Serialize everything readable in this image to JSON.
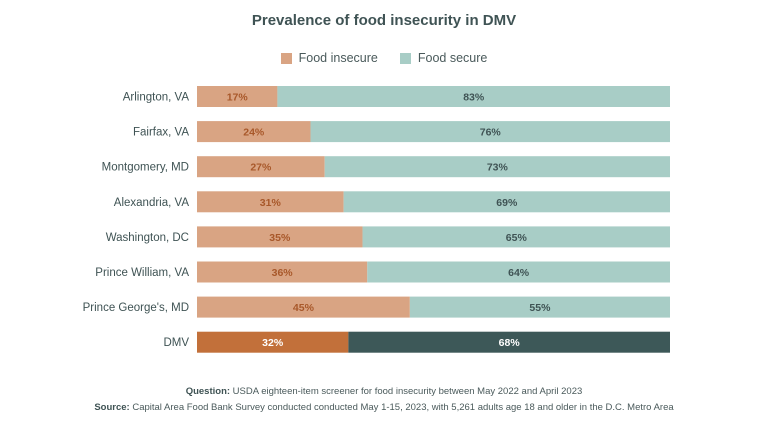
{
  "chart_data": {
    "type": "bar",
    "orientation": "horizontal",
    "stacked": true,
    "title": "Prevalence of food insecurity in DMV",
    "categories": [
      "Arlington, VA",
      "Fairfax, VA",
      "Montgomery, MD",
      "Alexandria, VA",
      "Washington, DC",
      "Prince William, VA",
      "Prince George's, MD",
      "DMV"
    ],
    "series": [
      {
        "name": "Food insecure",
        "values": [
          17,
          24,
          27,
          31,
          35,
          36,
          45,
          32
        ],
        "color": "#d9a483",
        "highlight_color": "#c2703a",
        "label_color": "#a8582a",
        "highlight_label_color": "#ffffff"
      },
      {
        "name": "Food secure",
        "values": [
          83,
          76,
          73,
          69,
          65,
          64,
          55,
          68
        ],
        "color": "#a8cdc6",
        "highlight_color": "#3d5858",
        "label_color": "#3f5354",
        "highlight_label_color": "#ffffff"
      }
    ],
    "value_suffix": "%",
    "highlight_category": "DMV",
    "xlim": [
      0,
      100
    ],
    "legend_position": "top-center",
    "grid": false
  },
  "footer": {
    "question_label": "Question:",
    "question_text": " USDA eighteen-item screener for food insecurity between May 2022 and April 2023",
    "source_label": "Source:",
    "source_text": " Capital Area Food Bank Survey conducted conducted May 1-15, 2023, with 5,261 adults age 18 and older in the D.C. Metro Area"
  }
}
